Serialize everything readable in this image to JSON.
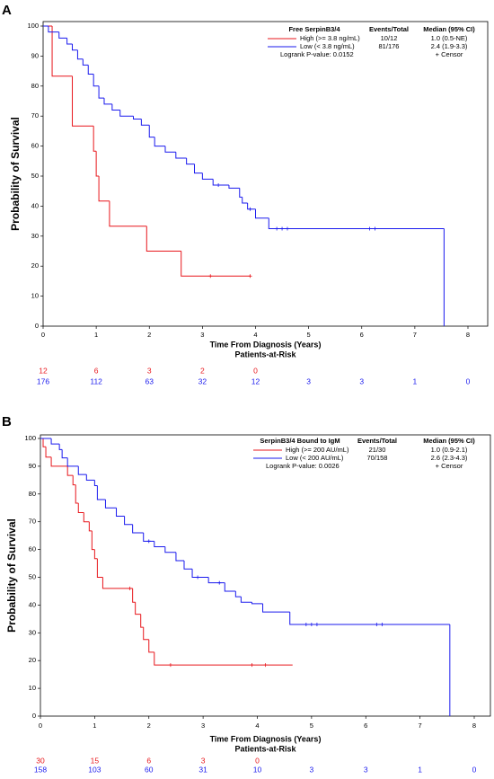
{
  "chart_data": [
    {
      "type": "step",
      "label": "A",
      "xlabel": "Time From Diagnosis (Years)",
      "ylabel": "Probability of Survival",
      "xlim": [
        0,
        8
      ],
      "ylim": [
        0,
        100
      ],
      "xticks": [
        0,
        1,
        2,
        3,
        4,
        5,
        6,
        7,
        8
      ],
      "yticks": [
        0,
        10,
        20,
        30,
        40,
        50,
        60,
        70,
        80,
        90,
        100
      ],
      "legend": {
        "title": "Free SerpinB3/4",
        "headers": [
          "Events/Total",
          "Median (95% CI)"
        ],
        "pvalue": "Logrank P-value: 0.0152",
        "censor": "+ Censor"
      },
      "risk_title": "Patients-at-Risk",
      "series": [
        {
          "name": "High (>= 3.8 ng/mL)",
          "color": "#e8171c",
          "events": "10/12",
          "median": "1.0 (0.5-NE)",
          "x": [
            0,
            0.17,
            0.55,
            0.95,
            1.0,
            1.05,
            1.25,
            1.95,
            2.6,
            3.9
          ],
          "values": [
            100,
            83.3,
            66.7,
            58.3,
            50,
            41.7,
            33.3,
            25,
            16.7,
            16.7
          ],
          "censor_x": [
            3.15,
            3.9
          ],
          "at_risk": [
            12,
            6,
            3,
            2,
            0
          ]
        },
        {
          "name": "Low (< 3.8 ng/mL)",
          "color": "#1a1aee",
          "events": "81/176",
          "median": "2.4 (1.9-3.3)",
          "x": [
            0,
            0.1,
            0.3,
            0.45,
            0.55,
            0.65,
            0.75,
            0.85,
            0.95,
            1.05,
            1.15,
            1.3,
            1.45,
            1.7,
            1.85,
            2.0,
            2.1,
            2.3,
            2.5,
            2.7,
            2.85,
            3.0,
            3.2,
            3.5,
            3.7,
            3.75,
            3.85,
            4.0,
            4.25,
            7.55
          ],
          "values": [
            100,
            98,
            96,
            94,
            92,
            89,
            87,
            84,
            80,
            76,
            74,
            72,
            70,
            69,
            67,
            63,
            60,
            58,
            56,
            54,
            51,
            49,
            47,
            46,
            43,
            41,
            39,
            36,
            32.5,
            0
          ],
          "censor_x": [
            3.3,
            3.9,
            4.4,
            4.5,
            4.6,
            6.15,
            6.25
          ],
          "at_risk": [
            176,
            112,
            63,
            32,
            12,
            3,
            3,
            1,
            0
          ]
        }
      ]
    },
    {
      "type": "step",
      "label": "B",
      "xlabel": "Time From Diagnosis (Years)",
      "ylabel": "Probability of Survival",
      "xlim": [
        0,
        8
      ],
      "ylim": [
        0,
        100
      ],
      "xticks": [
        0,
        1,
        2,
        3,
        4,
        5,
        6,
        7,
        8
      ],
      "yticks": [
        0,
        10,
        20,
        30,
        40,
        50,
        60,
        70,
        80,
        90,
        100
      ],
      "legend": {
        "title": "SerpinB3/4 Bound to IgM",
        "headers": [
          "Events/Total",
          "Median (95% CI)"
        ],
        "pvalue": "Logrank P-value: 0.0026",
        "censor": "+ Censor"
      },
      "risk_title": "Patients-at-Risk",
      "series": [
        {
          "name": "High (>= 200 AU/mL)",
          "color": "#e8171c",
          "events": "21/30",
          "median": "1.0 (0.9-2.1)",
          "x": [
            0,
            0.05,
            0.1,
            0.2,
            0.5,
            0.6,
            0.65,
            0.7,
            0.8,
            0.9,
            0.95,
            1.0,
            1.05,
            1.15,
            1.7,
            1.75,
            1.85,
            1.9,
            2.0,
            2.1,
            4.65
          ],
          "values": [
            100,
            97,
            93.3,
            90,
            86.7,
            83.3,
            76.7,
            73.3,
            70,
            66.7,
            60,
            56.7,
            50,
            46,
            41,
            36.7,
            32,
            27.6,
            23,
            18.4,
            18.4
          ],
          "censor_x": [
            1.65,
            2.4,
            3.9,
            4.15
          ],
          "at_risk": [
            30,
            15,
            6,
            3,
            0
          ]
        },
        {
          "name": "Low (< 200 AU/mL)",
          "color": "#1a1aee",
          "events": "70/158",
          "median": "2.6 (2.3-4.3)",
          "x": [
            0,
            0.2,
            0.35,
            0.4,
            0.5,
            0.7,
            0.85,
            1.0,
            1.05,
            1.2,
            1.4,
            1.55,
            1.7,
            1.9,
            2.1,
            2.3,
            2.5,
            2.65,
            2.8,
            3.1,
            3.4,
            3.6,
            3.7,
            3.9,
            4.1,
            4.6,
            7.55
          ],
          "values": [
            100,
            98,
            96,
            93,
            90,
            87,
            85,
            83,
            78,
            75,
            72,
            69,
            66,
            63,
            61,
            59,
            56,
            53,
            50,
            48,
            45,
            43,
            41,
            40.5,
            37.5,
            33,
            0
          ],
          "censor_x": [
            2.0,
            2.9,
            3.3,
            4.9,
            5.0,
            5.1,
            6.2,
            6.3
          ],
          "at_risk": [
            158,
            103,
            60,
            31,
            10,
            3,
            3,
            1,
            0
          ]
        }
      ]
    }
  ]
}
